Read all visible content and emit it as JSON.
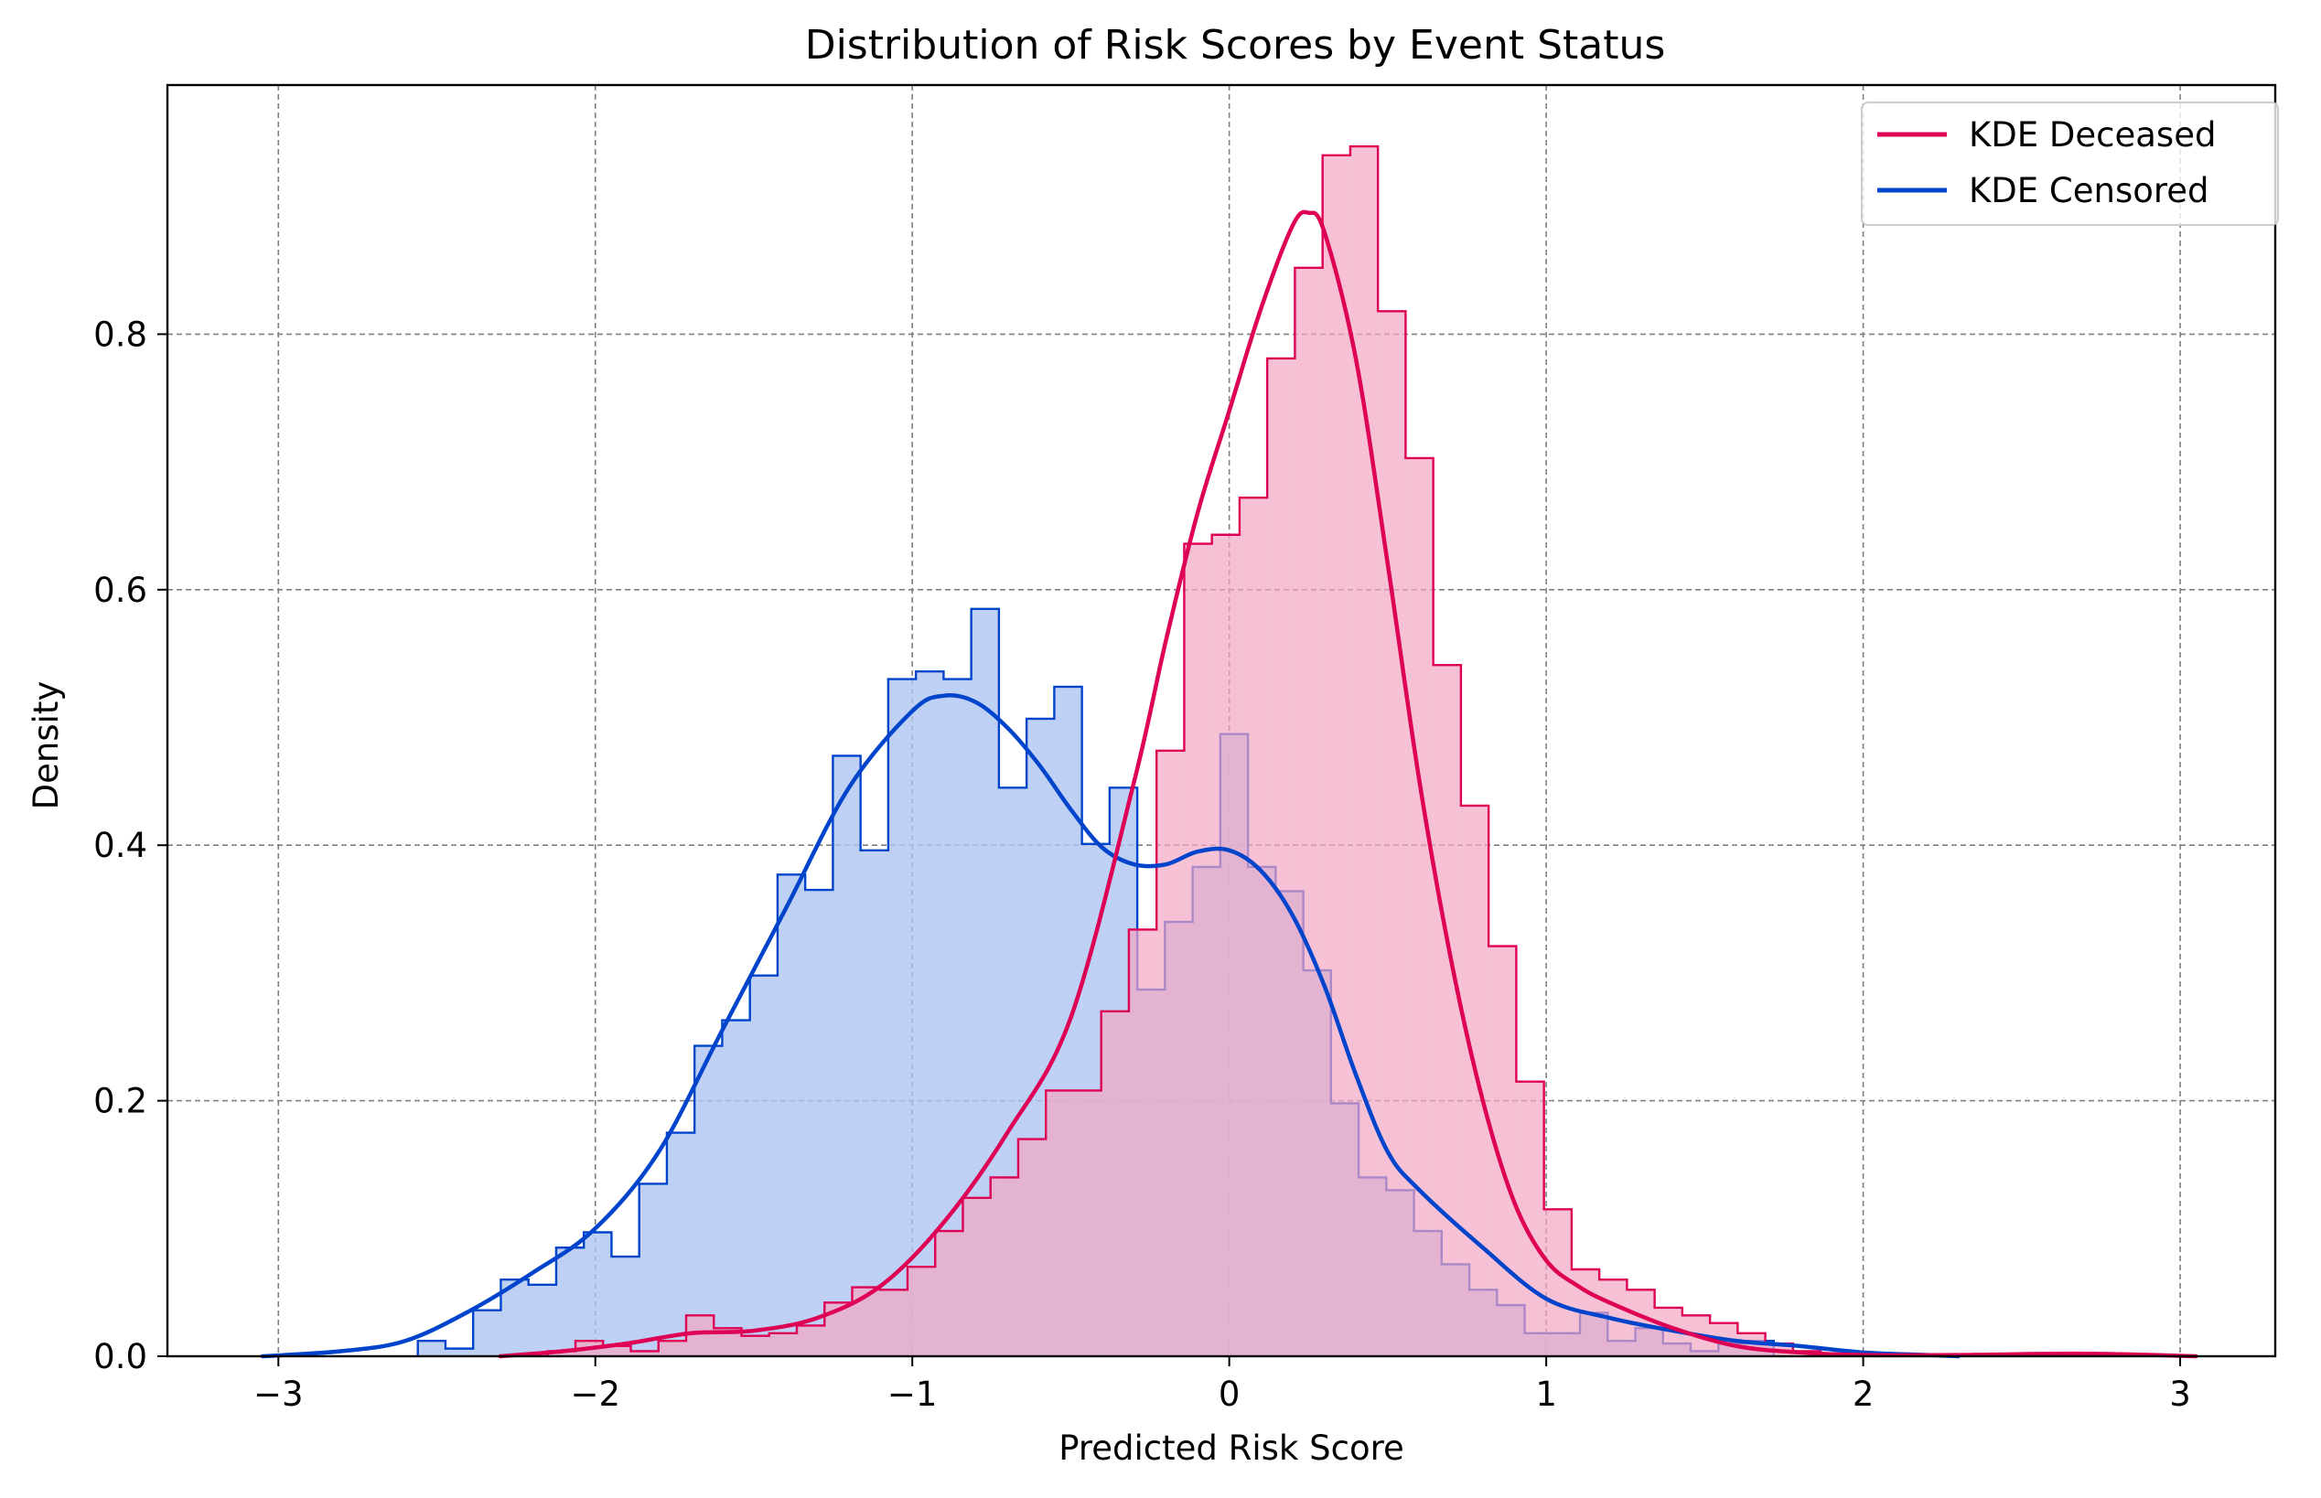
{
  "chart_data": {
    "type": "histogram-kde",
    "title": "Distribution of Risk Scores by Event Status",
    "xlabel": "Predicted Risk Score",
    "ylabel": "Density",
    "xlim": [
      -3.35,
      3.3
    ],
    "ylim": [
      0,
      0.995
    ],
    "xticks": [
      -3,
      -2,
      -1,
      0,
      1,
      2,
      3
    ],
    "xtick_labels": [
      "−3",
      "−2",
      "−1",
      "0",
      "1",
      "2",
      "3"
    ],
    "yticks": [
      0.0,
      0.2,
      0.4,
      0.6,
      0.8
    ],
    "ytick_labels": [
      "0.0",
      "0.2",
      "0.4",
      "0.6",
      "0.8"
    ],
    "grid": true,
    "legend_position": "top-right",
    "series": [
      {
        "name": "KDE Censored",
        "color": "#0044cc",
        "fill_color": "#aec4f0",
        "fill_opacity": 0.8,
        "bin_start": -2.56,
        "bin_width": 0.0873,
        "hist": [
          0.012,
          0.006,
          0.036,
          0.06,
          0.056,
          0.085,
          0.097,
          0.078,
          0.135,
          0.175,
          0.243,
          0.263,
          0.298,
          0.377,
          0.365,
          0.47,
          0.396,
          0.53,
          0.536,
          0.53,
          0.585,
          0.445,
          0.499,
          0.524,
          0.401,
          0.445,
          0.287,
          0.34,
          0.383,
          0.487,
          0.383,
          0.364,
          0.302,
          0.198,
          0.14,
          0.13,
          0.098,
          0.072,
          0.052,
          0.04,
          0.018,
          0.018,
          0.034,
          0.012,
          0.022,
          0.01,
          0.004,
          0.01,
          0.012
        ],
        "kde_x": [
          -3.05,
          -2.8,
          -2.6,
          -2.4,
          -2.2,
          -2.0,
          -1.8,
          -1.6,
          -1.4,
          -1.2,
          -1.0,
          -0.9,
          -0.8,
          -0.7,
          -0.6,
          -0.5,
          -0.4,
          -0.3,
          -0.2,
          -0.1,
          0.0,
          0.1,
          0.2,
          0.3,
          0.4,
          0.5,
          0.6,
          0.8,
          1.0,
          1.2,
          1.4,
          1.6,
          1.8,
          2.0,
          2.2,
          2.3
        ],
        "kde_y": [
          0.0,
          0.004,
          0.012,
          0.035,
          0.065,
          0.1,
          0.16,
          0.255,
          0.35,
          0.445,
          0.505,
          0.517,
          0.512,
          0.492,
          0.463,
          0.428,
          0.398,
          0.385,
          0.385,
          0.395,
          0.396,
          0.38,
          0.345,
          0.29,
          0.22,
          0.16,
          0.13,
          0.085,
          0.045,
          0.03,
          0.02,
          0.012,
          0.008,
          0.003,
          0.001,
          0.0
        ]
      },
      {
        "name": "KDE Deceased",
        "color": "#dd0055",
        "fill_color": "#f4a6c3",
        "fill_opacity": 0.7,
        "bin_start": -2.15,
        "bin_width": 0.0873,
        "hist": [
          0.004,
          0.012,
          0.008,
          0.004,
          0.012,
          0.032,
          0.022,
          0.016,
          0.018,
          0.024,
          0.042,
          0.054,
          0.052,
          0.07,
          0.098,
          0.124,
          0.14,
          0.17,
          0.208,
          0.208,
          0.27,
          0.334,
          0.474,
          0.636,
          0.643,
          0.672,
          0.781,
          0.852,
          0.94,
          0.947,
          0.818,
          0.703,
          0.541,
          0.431,
          0.321,
          0.215,
          0.115,
          0.068,
          0.06,
          0.052,
          0.038,
          0.032,
          0.026,
          0.018,
          0.01,
          0.004,
          0.002
        ],
        "kde_x": [
          -2.3,
          -2.1,
          -1.9,
          -1.7,
          -1.5,
          -1.3,
          -1.1,
          -0.9,
          -0.7,
          -0.5,
          -0.3,
          -0.2,
          -0.1,
          0.0,
          0.1,
          0.2,
          0.25,
          0.3,
          0.4,
          0.5,
          0.6,
          0.7,
          0.8,
          0.9,
          1.0,
          1.1,
          1.2,
          1.4,
          1.6,
          1.8,
          2.0,
          2.3,
          2.7,
          3.05
        ],
        "kde_y": [
          0.0,
          0.004,
          0.01,
          0.018,
          0.02,
          0.03,
          0.055,
          0.105,
          0.175,
          0.265,
          0.45,
          0.56,
          0.66,
          0.74,
          0.82,
          0.885,
          0.895,
          0.88,
          0.78,
          0.62,
          0.45,
          0.31,
          0.2,
          0.12,
          0.075,
          0.055,
          0.042,
          0.022,
          0.008,
          0.003,
          0.001,
          0.001,
          0.002,
          0.0
        ]
      }
    ],
    "legend": [
      {
        "label": "KDE Deceased",
        "color": "#dd0055"
      },
      {
        "label": "KDE Censored",
        "color": "#0044cc"
      }
    ]
  }
}
